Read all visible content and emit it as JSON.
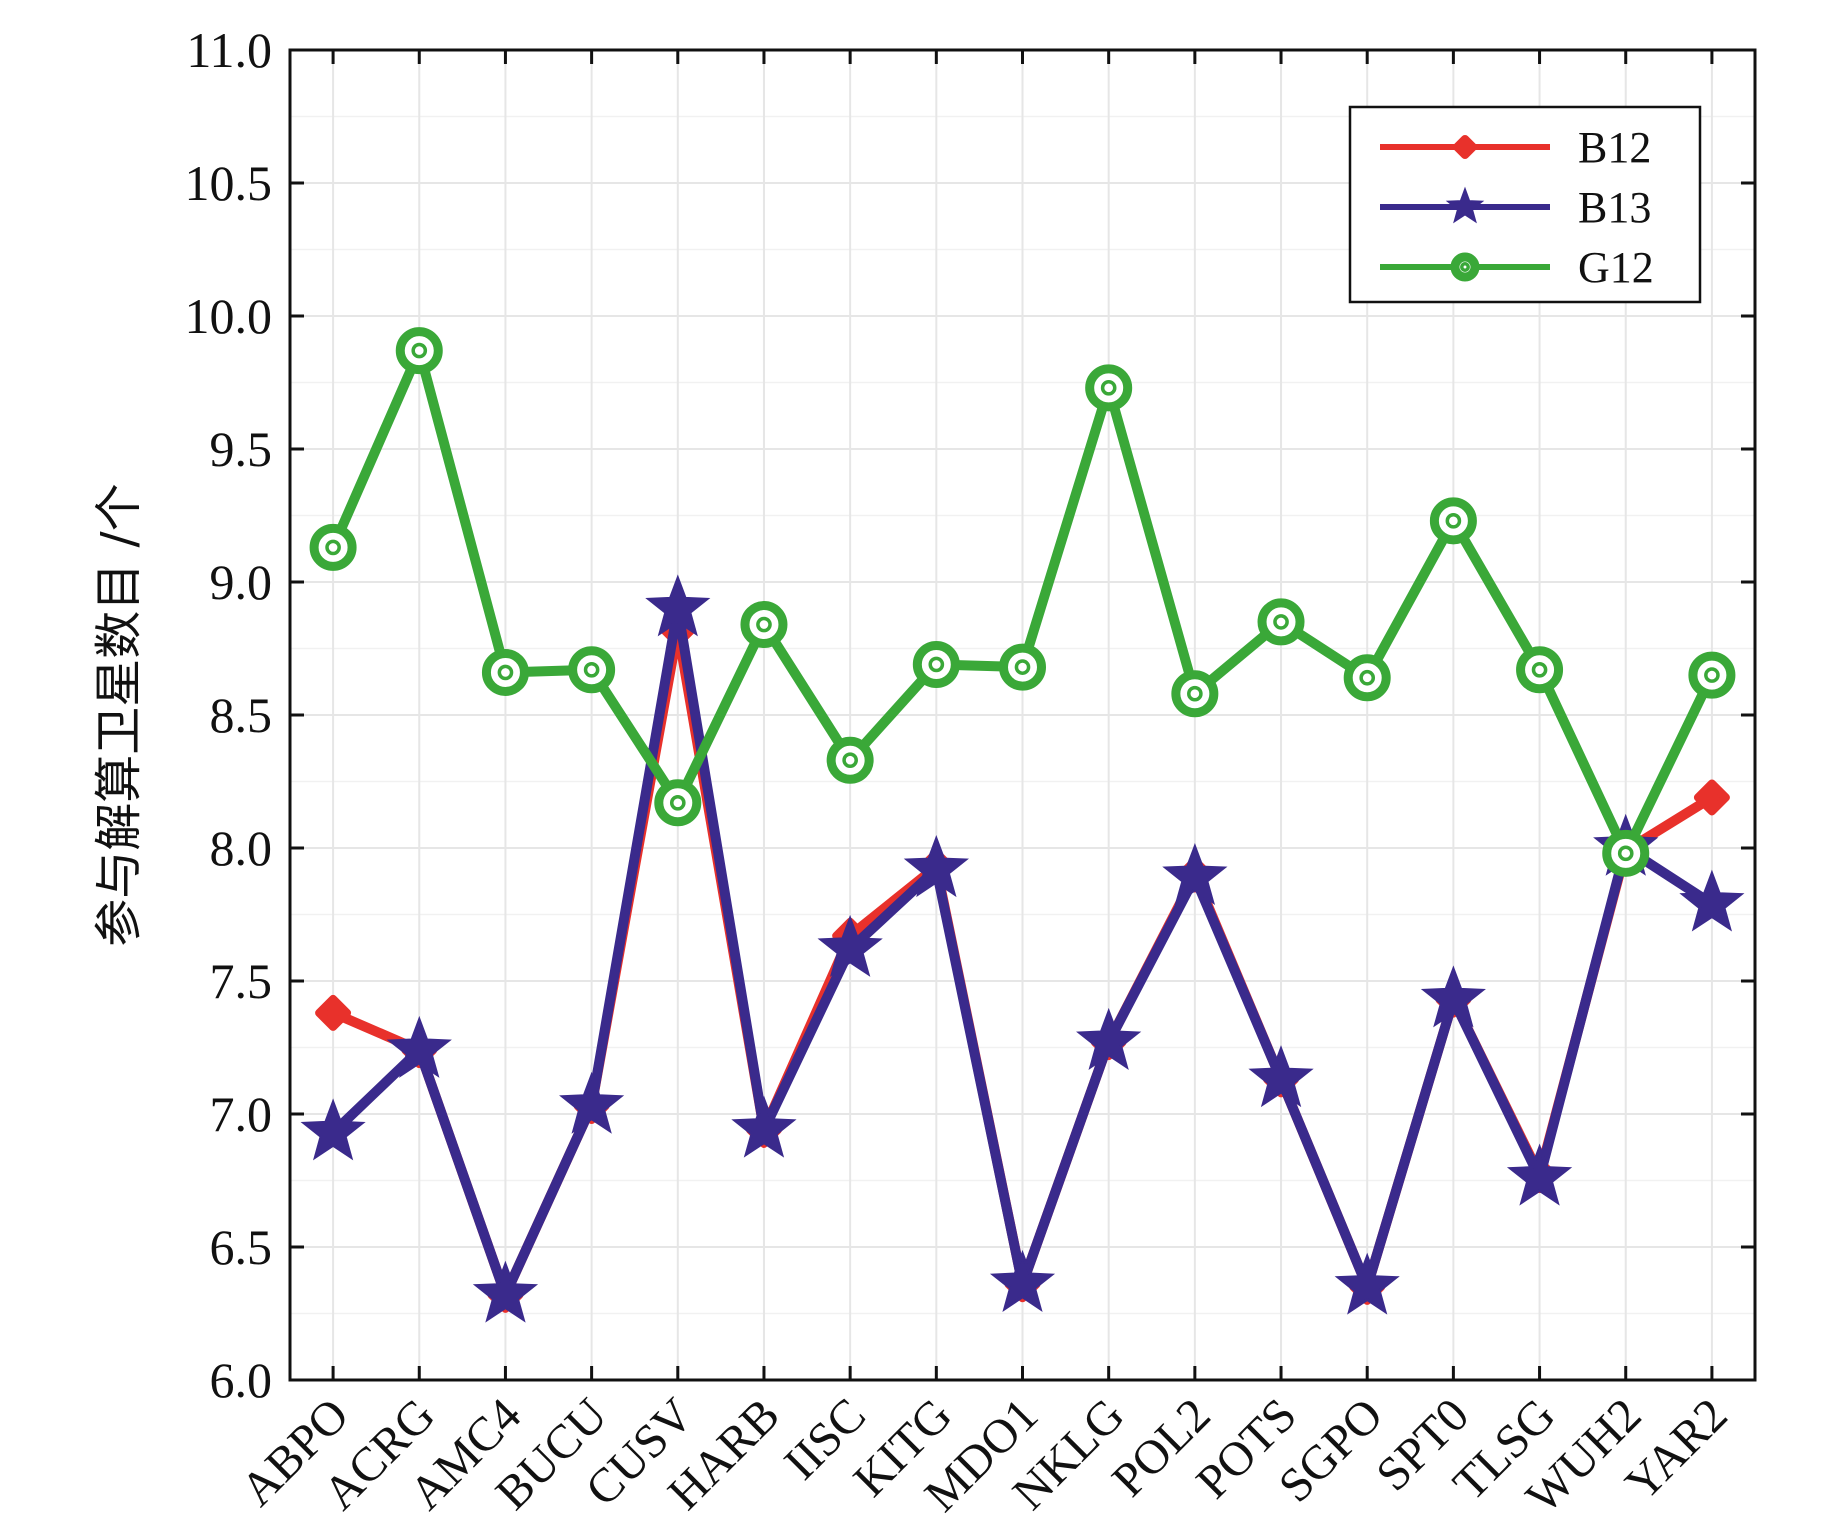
{
  "chart_data": {
    "type": "line",
    "title": "",
    "xlabel": "",
    "ylabel": "参与解算卫星数目 /个",
    "ylim": [
      6.0,
      11.0
    ],
    "yticks": [
      "6.0",
      "6.5",
      "7.0",
      "7.5",
      "8.0",
      "8.5",
      "9.0",
      "9.5",
      "10.0",
      "10.5",
      "11.0"
    ],
    "grid": true,
    "legend_position": "top-right",
    "categories": [
      "ABPO",
      "ACRG",
      "AMC4",
      "BUCU",
      "CUSV",
      "HARB",
      "IISC",
      "KITG",
      "MDO1",
      "NKLG",
      "POL2",
      "POTS",
      "SGPO",
      "SPT0",
      "TLSG",
      "WUH2",
      "YAR2"
    ],
    "series": [
      {
        "name": "B12",
        "color": "#e8312b",
        "marker": "diamond",
        "values": [
          7.38,
          7.24,
          6.32,
          7.03,
          8.82,
          6.94,
          7.67,
          7.93,
          6.36,
          7.27,
          7.9,
          7.13,
          6.35,
          7.43,
          6.77,
          7.99,
          8.19
        ]
      },
      {
        "name": "B13",
        "color": "#3a2a8c",
        "marker": "star",
        "values": [
          6.93,
          7.24,
          6.32,
          7.03,
          8.9,
          6.94,
          7.62,
          7.92,
          6.36,
          7.27,
          7.89,
          7.13,
          6.35,
          7.43,
          6.76,
          8.0,
          7.79
        ]
      },
      {
        "name": "G12",
        "color": "#3aa838",
        "marker": "circle",
        "values": [
          9.13,
          9.87,
          8.66,
          8.67,
          8.17,
          8.84,
          8.33,
          8.69,
          8.68,
          9.73,
          8.58,
          8.85,
          8.64,
          9.23,
          8.67,
          7.98,
          8.65
        ]
      }
    ]
  }
}
